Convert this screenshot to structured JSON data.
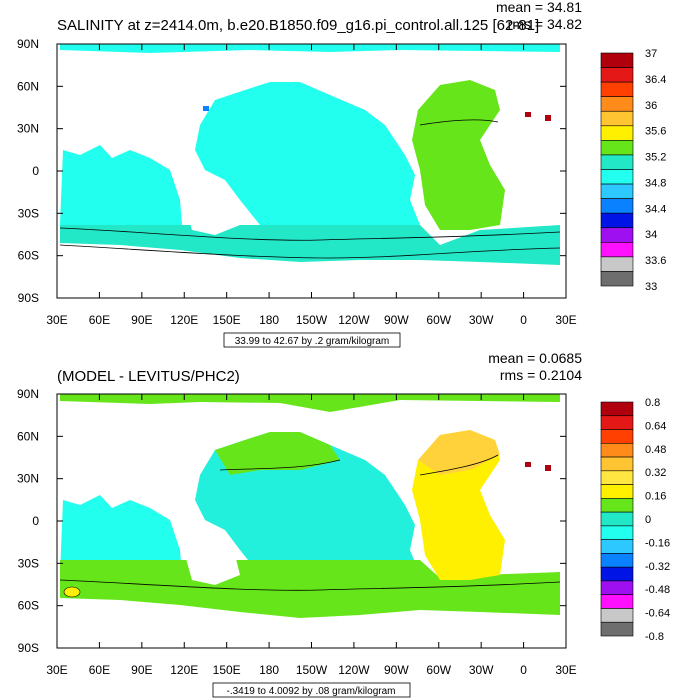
{
  "colors": {
    "ocean_top": "#22ffee",
    "ocean_top_atlantic": "#66e61a",
    "ocean_top_south": "#22e8c8",
    "land": "#ffffff",
    "diff_pacific": "#22f0dd",
    "diff_atlantic": "#fff000",
    "diff_south": "#66e61a",
    "diff_atl_north": "#ffd23c"
  },
  "chart_data": [
    {
      "type": "heatmap",
      "title": "SALINITY at z=2414.0m, b.e20.B1850.f09_g16.pi_control.all.125 [62-81]",
      "stats": {
        "mean": "mean = 34.81",
        "rms": "rms = 34.82"
      },
      "x_ticks": [
        "30E",
        "60E",
        "90E",
        "120E",
        "150E",
        "180",
        "150W",
        "120W",
        "90W",
        "60W",
        "30W",
        "0",
        "30E"
      ],
      "y_ticks": [
        "90N",
        "60N",
        "30N",
        "0",
        "30S",
        "60S",
        "90S"
      ],
      "contour_info": "33.99 to 42.67 by .2 gram/kilogram",
      "colorbar": {
        "labels": [
          "37",
          "36.4",
          "36",
          "35.6",
          "35.2",
          "34.8",
          "34.4",
          "34",
          "33.6",
          "33"
        ],
        "colors": [
          "#b0000e",
          "#e51818",
          "#ff4000",
          "#ff8c1a",
          "#ffc432",
          "#fff000",
          "#66e61a",
          "#22e8c8",
          "#22ffee",
          "#2cc8ff",
          "#0a82ff",
          "#0014e6",
          "#9e10f0",
          "#ff10ff",
          "#c8c8c8",
          "#6e6e6e"
        ]
      }
    },
    {
      "type": "heatmap",
      "title": "(MODEL - LEVITUS/PHC2)",
      "stats": {
        "mean": "mean = 0.0685",
        "rms": "rms = 0.2104"
      },
      "x_ticks": [
        "30E",
        "60E",
        "90E",
        "120E",
        "150E",
        "180",
        "150W",
        "120W",
        "90W",
        "60W",
        "30W",
        "0",
        "30E"
      ],
      "y_ticks": [
        "90N",
        "60N",
        "30N",
        "0",
        "30S",
        "60S",
        "90S"
      ],
      "contour_info": "-.3419 to 4.0092 by .08 gram/kilogram",
      "colorbar": {
        "labels": [
          "0.8",
          "0.64",
          "0.48",
          "0.32",
          "0.16",
          "0",
          "-0.16",
          "-0.32",
          "-0.48",
          "-0.64",
          "-0.8"
        ],
        "colors": [
          "#b0000e",
          "#e51818",
          "#ff4000",
          "#ff8c1a",
          "#ffc432",
          "#ffe640",
          "#fff000",
          "#66e61a",
          "#22e8c8",
          "#22ffee",
          "#2cc8ff",
          "#0a82ff",
          "#0014e6",
          "#9e10f0",
          "#ff10ff",
          "#c8c8c8",
          "#6e6e6e"
        ]
      }
    }
  ]
}
